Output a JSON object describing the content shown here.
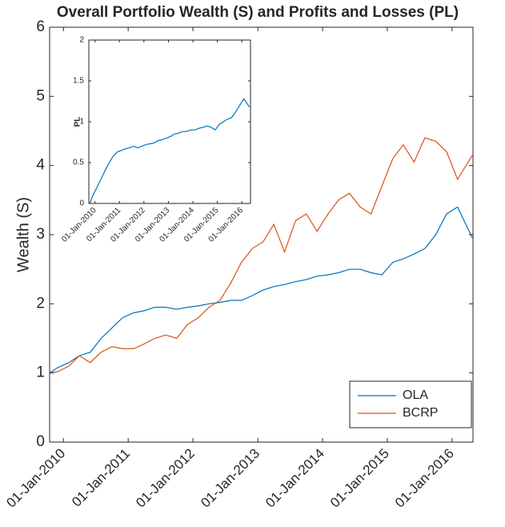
{
  "chart_data": [
    {
      "type": "line",
      "title": "Overall Portfolio Wealth (S) and Profits and Losses (PL)",
      "ylabel": "Wealth (S)",
      "x": [
        "2009-10-15",
        "2009-12-01",
        "2010-02-01",
        "2010-04-01",
        "2010-06-01",
        "2010-08-01",
        "2010-10-01",
        "2010-12-01",
        "2011-02-01",
        "2011-04-01",
        "2011-06-01",
        "2011-08-01",
        "2011-10-01",
        "2011-12-01",
        "2012-02-01",
        "2012-04-01",
        "2012-06-01",
        "2012-08-01",
        "2012-10-01",
        "2012-12-01",
        "2013-02-01",
        "2013-04-01",
        "2013-06-01",
        "2013-08-01",
        "2013-10-01",
        "2013-12-01",
        "2014-02-01",
        "2014-04-01",
        "2014-06-01",
        "2014-08-01",
        "2014-10-01",
        "2014-12-01",
        "2015-02-01",
        "2015-04-01",
        "2015-06-01",
        "2015-08-01",
        "2015-10-01",
        "2015-12-01",
        "2016-02-01",
        "2016-04-25"
      ],
      "series": [
        {
          "name": "OLA",
          "color": "#0072BD",
          "values": [
            1.0,
            1.08,
            1.15,
            1.25,
            1.3,
            1.5,
            1.65,
            1.8,
            1.87,
            1.9,
            1.95,
            1.95,
            1.92,
            1.95,
            1.97,
            2.0,
            2.02,
            2.05,
            2.05,
            2.12,
            2.2,
            2.25,
            2.28,
            2.32,
            2.35,
            2.4,
            2.42,
            2.45,
            2.5,
            2.5,
            2.45,
            2.42,
            2.6,
            2.65,
            2.72,
            2.8,
            3.0,
            3.3,
            3.4,
            2.95
          ]
        },
        {
          "name": "BCRP",
          "color": "#D95319",
          "values": [
            1.0,
            1.02,
            1.1,
            1.25,
            1.15,
            1.3,
            1.38,
            1.35,
            1.35,
            1.42,
            1.5,
            1.55,
            1.5,
            1.7,
            1.8,
            1.95,
            2.05,
            2.3,
            2.6,
            2.8,
            2.9,
            3.15,
            2.75,
            3.2,
            3.3,
            3.05,
            3.3,
            3.5,
            3.6,
            3.4,
            3.3,
            3.7,
            4.1,
            4.3,
            4.05,
            4.4,
            4.35,
            4.2,
            3.8,
            4.15
          ]
        }
      ],
      "xlim": [
        "2009-10-15",
        "2016-04-28"
      ],
      "xticks": [
        {
          "value": "2010-01-01",
          "label": "01-Jan-2010"
        },
        {
          "value": "2011-01-01",
          "label": "01-Jan-2011"
        },
        {
          "value": "2012-01-01",
          "label": "01-Jan-2012"
        },
        {
          "value": "2013-01-01",
          "label": "01-Jan-2013"
        },
        {
          "value": "2014-01-01",
          "label": "01-Jan-2014"
        },
        {
          "value": "2015-01-01",
          "label": "01-Jan-2015"
        },
        {
          "value": "2016-01-01",
          "label": "01-Jan-2016"
        }
      ],
      "ylim": [
        0,
        6
      ],
      "yticks": [
        0,
        1,
        2,
        3,
        4,
        5,
        6
      ],
      "legend": "lower right",
      "grid": false
    },
    {
      "type": "line",
      "ylabel": "PL",
      "x": [
        "2009-10-15",
        "2009-12-01",
        "2010-02-01",
        "2010-04-01",
        "2010-06-01",
        "2010-08-01",
        "2010-10-01",
        "2010-12-01",
        "2011-02-01",
        "2011-04-01",
        "2011-06-01",
        "2011-08-01",
        "2011-10-01",
        "2011-12-01",
        "2012-02-01",
        "2012-04-01",
        "2012-06-01",
        "2012-08-01",
        "2012-10-01",
        "2012-12-01",
        "2013-02-01",
        "2013-04-01",
        "2013-06-01",
        "2013-08-01",
        "2013-10-01",
        "2013-12-01",
        "2014-02-01",
        "2014-04-01",
        "2014-06-01",
        "2014-08-01",
        "2014-10-01",
        "2014-12-01",
        "2015-02-01",
        "2015-04-01",
        "2015-06-01",
        "2015-08-01",
        "2015-10-01",
        "2015-12-01",
        "2016-02-01",
        "2016-04-25"
      ],
      "series": [
        {
          "color": "#0072BD",
          "values": [
            0,
            0.1,
            0.2,
            0.3,
            0.4,
            0.5,
            0.58,
            0.63,
            0.65,
            0.67,
            0.68,
            0.7,
            0.68,
            0.7,
            0.72,
            0.73,
            0.74,
            0.77,
            0.78,
            0.8,
            0.82,
            0.85,
            0.86,
            0.88,
            0.88,
            0.9,
            0.9,
            0.92,
            0.93,
            0.95,
            0.93,
            0.9,
            0.97,
            1.0,
            1.03,
            1.05,
            1.12,
            1.2,
            1.28,
            1.18
          ]
        }
      ],
      "xlim": [
        "2009-10-01",
        "2016-05-10"
      ],
      "xticks": [
        {
          "value": "2010-01-01",
          "label": "01-Jan-2010"
        },
        {
          "value": "2011-01-01",
          "label": "01-Jan-2011"
        },
        {
          "value": "2012-01-01",
          "label": "01-Jan-2012"
        },
        {
          "value": "2013-01-01",
          "label": "01-Jan-2013"
        },
        {
          "value": "2014-01-01",
          "label": "01-Jan-2014"
        },
        {
          "value": "2015-01-01",
          "label": "01-Jan-2015"
        },
        {
          "value": "2016-01-01",
          "label": "01-Jan-2016"
        }
      ],
      "ylim": [
        0,
        2
      ],
      "yticks": [
        0,
        0.5,
        1,
        1.5,
        2
      ],
      "grid": false
    }
  ]
}
